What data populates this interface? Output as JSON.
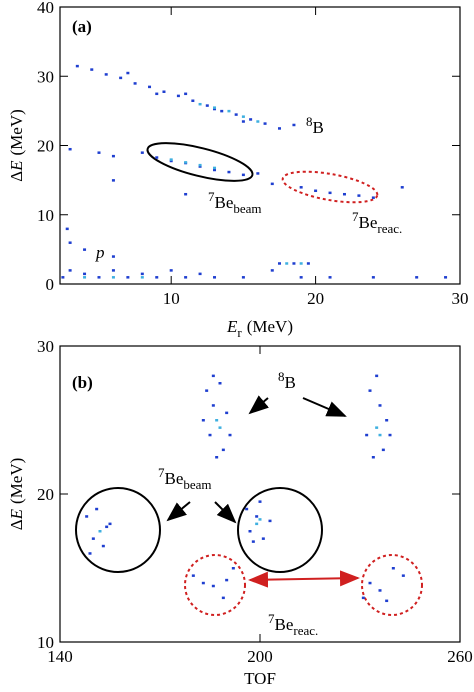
{
  "chart_data": [
    {
      "type": "scatter",
      "annotations": [
        [
          {
            "t": "(a)",
            "style": "bold"
          }
        ],
        [
          {
            "t": "8",
            "style": "sup"
          },
          {
            "t": "B"
          }
        ],
        [
          {
            "t": "7",
            "style": "sup"
          },
          {
            "t": "Be"
          },
          {
            "t": "beam",
            "style": "sub"
          }
        ],
        [
          {
            "t": "7",
            "style": "sup"
          },
          {
            "t": "Be"
          },
          {
            "t": "reac.",
            "style": "sub"
          }
        ],
        [
          {
            "t": "p",
            "style": "italic"
          }
        ]
      ],
      "xlabel": [
        {
          "t": "E",
          "style": "italic"
        },
        {
          "t": "r",
          "style": "sub"
        },
        {
          "t": "(MeV)"
        }
      ],
      "ylabel": [
        {
          "t": "Δ"
        },
        {
          "t": "E",
          "style": "italic"
        },
        {
          "t": "(MeV)"
        }
      ],
      "xlim": [
        2.3,
        30
      ],
      "ylim": [
        0,
        40
      ],
      "xticks": [
        10,
        20,
        30
      ],
      "yticks": [
        0,
        10,
        20,
        30,
        40
      ],
      "series": [
        {
          "color": "#1f3fd0",
          "x": [
            3.5,
            4.5,
            5.5,
            6.5,
            7.5,
            8.5,
            9.5,
            10.5,
            11.5,
            12.5,
            13.5,
            14.5,
            15.5,
            16.5,
            17.5,
            18.5,
            7,
            9,
            11,
            13,
            15,
            3,
            5,
            6,
            8,
            9,
            10,
            11,
            12,
            13,
            14,
            15,
            16,
            17,
            11,
            6,
            19,
            20,
            21,
            22,
            23,
            24,
            26,
            2.5,
            3,
            4,
            5,
            6,
            7,
            8,
            9,
            10,
            11,
            12,
            13,
            15,
            17,
            19,
            21,
            24,
            27,
            29,
            3,
            4,
            6,
            2.8,
            17.5,
            18.5,
            19.5
          ],
          "y": [
            31.5,
            31,
            30.3,
            29.8,
            29,
            28.5,
            27.8,
            27.2,
            26.5,
            25.8,
            25,
            24.5,
            23.8,
            23.2,
            22.5,
            23,
            30.5,
            27.5,
            27.5,
            25.3,
            23.5,
            19.5,
            19,
            18.5,
            19,
            18.3,
            17.8,
            17.5,
            17,
            16.5,
            16.2,
            15.8,
            16,
            14.5,
            13,
            15,
            14,
            13.5,
            13.2,
            13,
            12.8,
            12.5,
            14,
            1,
            2,
            1.5,
            1,
            2,
            1,
            1.5,
            1,
            2,
            1,
            1.5,
            1,
            1,
            2,
            1,
            1,
            1,
            1,
            1,
            6,
            5,
            4,
            8,
            3,
            3,
            3
          ]
        },
        {
          "color": "#3fb0e0",
          "x": [
            12,
            13,
            14,
            15,
            16,
            10,
            11,
            12,
            13,
            4,
            6,
            8,
            18,
            19
          ],
          "y": [
            26,
            25.5,
            25,
            24.2,
            23.5,
            18,
            17.6,
            17.2,
            16.8,
            1,
            1,
            1,
            3,
            3
          ]
        }
      ]
    },
    {
      "type": "scatter",
      "annotations": [
        [
          {
            "t": "(b)",
            "style": "bold"
          }
        ],
        [
          {
            "t": "8",
            "style": "sup"
          },
          {
            "t": "B"
          }
        ],
        [
          {
            "t": "7",
            "style": "sup"
          },
          {
            "t": "Be"
          },
          {
            "t": "beam",
            "style": "sub"
          }
        ],
        [
          {
            "t": "7",
            "style": "sup"
          },
          {
            "t": "Be"
          },
          {
            "t": "reac.",
            "style": "sub"
          }
        ]
      ],
      "xlabel": [
        {
          "t": "TOF"
        }
      ],
      "ylabel": [
        {
          "t": "Δ"
        },
        {
          "t": "E",
          "style": "italic"
        },
        {
          "t": "(MeV)"
        }
      ],
      "xlim": [
        140,
        260
      ],
      "ylim": [
        10,
        30
      ],
      "xticks": [
        140,
        200,
        260
      ],
      "yticks": [
        10,
        20,
        30
      ],
      "series": [
        {
          "color": "#1f3fd0",
          "x": [
            184,
            186,
            188,
            185,
            189,
            190,
            183,
            187,
            191,
            186,
            233,
            236,
            238,
            232,
            237,
            234,
            239,
            235,
            148,
            150,
            153,
            155,
            151,
            154,
            149,
            196,
            199,
            201,
            203,
            198,
            200,
            197,
            180,
            183,
            186,
            190,
            192,
            189,
            233,
            236,
            240,
            238,
            243,
            231
          ],
          "y": [
            27,
            26,
            27.5,
            24,
            23,
            25.5,
            25,
            22.5,
            24,
            28,
            27,
            26,
            25,
            24,
            23,
            22.5,
            24,
            28,
            18.5,
            17,
            16.5,
            18,
            19,
            17.8,
            16,
            19,
            18.5,
            17,
            18.2,
            16.8,
            19.5,
            17.5,
            14.5,
            14,
            13.8,
            14.2,
            15,
            13,
            14,
            13.5,
            15,
            12.8,
            14.5,
            13
          ]
        },
        {
          "color": "#3fb0e0",
          "x": [
            187,
            188,
            235,
            236,
            152,
            199,
            200
          ],
          "y": [
            25,
            24.5,
            24.5,
            24,
            17.5,
            18,
            18.3
          ]
        }
      ]
    }
  ]
}
